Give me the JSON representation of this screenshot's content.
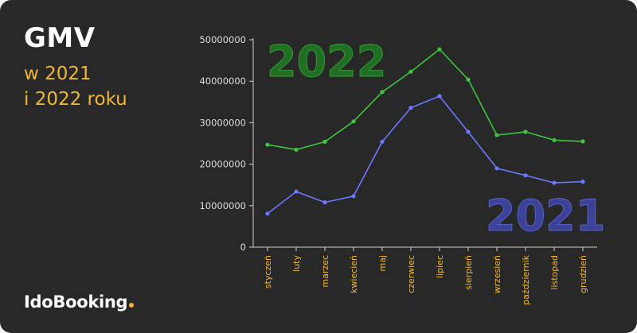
{
  "heading": {
    "title": "GMV",
    "subtitle_line1": "w 2021",
    "subtitle_line2": "i 2022 roku"
  },
  "brand": {
    "logo_text": "IdoBooking",
    "accent_color": "#f0b82e"
  },
  "chart_data": {
    "type": "line",
    "categories": [
      "styczeń",
      "luty",
      "marzec",
      "kwiecień",
      "maj",
      "czerwiec",
      "lipiec",
      "sierpień",
      "wrzesień",
      "październik",
      "listopad",
      "grudzień"
    ],
    "y_ticks": [
      "0",
      "10000000",
      "20000000",
      "30000000",
      "40000000",
      "50000000"
    ],
    "ylim": [
      0,
      50000000
    ],
    "grid": false,
    "series": [
      {
        "name": "2022",
        "color": "#3ec43e",
        "label_color": "#1f6e22",
        "values": [
          24700000,
          23500000,
          25400000,
          30300000,
          37400000,
          42300000,
          47700000,
          40400000,
          27000000,
          27800000,
          25800000,
          25500000
        ]
      },
      {
        "name": "2021",
        "color": "#6b78ff",
        "label_color": "#3b4298",
        "values": [
          8100000,
          13400000,
          10800000,
          12300000,
          25400000,
          33600000,
          36400000,
          27800000,
          19000000,
          17300000,
          15500000,
          15800000
        ]
      }
    ]
  }
}
